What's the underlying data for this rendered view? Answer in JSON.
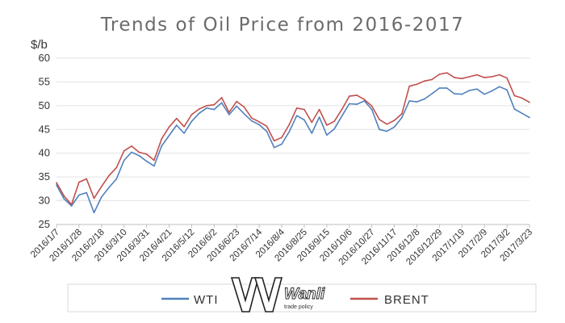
{
  "chart_data": {
    "type": "line",
    "title": "Trends of Oil Price from 2016-2017",
    "ylabel": "$/b",
    "ylim": [
      25,
      60
    ],
    "yticks": [
      25,
      30,
      35,
      40,
      45,
      50,
      55,
      60
    ],
    "x_tick_labels": [
      "2016/1/7",
      "2016/1/28",
      "2016/2/18",
      "2016/3/10",
      "2016/3/31",
      "2016/4/21",
      "2016/5/12",
      "2016/6/2",
      "2016/6/23",
      "2016/7/14",
      "2016/8/4",
      "2016/8/25",
      "2016/9/15",
      "2016/10/6",
      "2016/10/27",
      "2016/11/17",
      "2016/12/8",
      "2016/12/29",
      "2017/1/19",
      "2017/2/9",
      "2017/3/2",
      "2017/3/23"
    ],
    "grid": "horizontal",
    "legend_position": "bottom",
    "colors": {
      "WTI": "#4f81bd",
      "BRENT": "#c0504d"
    },
    "series": [
      {
        "name": "WTI",
        "x": [
          "2016/1/7",
          "2016/1/14",
          "2016/1/21",
          "2016/1/28",
          "2016/2/4",
          "2016/2/11",
          "2016/2/18",
          "2016/2/25",
          "2016/3/3",
          "2016/3/10",
          "2016/3/17",
          "2016/3/24",
          "2016/3/31",
          "2016/4/7",
          "2016/4/14",
          "2016/4/21",
          "2016/4/28",
          "2016/5/5",
          "2016/5/12",
          "2016/5/19",
          "2016/5/26",
          "2016/6/2",
          "2016/6/9",
          "2016/6/16",
          "2016/6/23",
          "2016/6/30",
          "2016/7/7",
          "2016/7/14",
          "2016/7/21",
          "2016/7/28",
          "2016/8/4",
          "2016/8/11",
          "2016/8/18",
          "2016/8/25",
          "2016/9/1",
          "2016/9/8",
          "2016/9/15",
          "2016/9/22",
          "2016/9/29",
          "2016/10/6",
          "2016/10/13",
          "2016/10/20",
          "2016/10/27",
          "2016/11/3",
          "2016/11/10",
          "2016/11/17",
          "2016/11/24",
          "2016/12/1",
          "2016/12/8",
          "2016/12/15",
          "2016/12/22",
          "2016/12/29",
          "2017/1/5",
          "2017/1/12",
          "2017/1/19",
          "2017/1/26",
          "2017/2/2",
          "2017/2/9",
          "2017/2/16",
          "2017/2/23",
          "2017/3/2",
          "2017/3/9",
          "2017/3/16",
          "2017/3/23"
        ],
        "values": [
          33.3,
          30.4,
          28.9,
          31.2,
          31.7,
          27.5,
          30.8,
          32.8,
          34.6,
          38.5,
          40.2,
          39.5,
          38.3,
          37.3,
          41.5,
          43.7,
          45.9,
          44.2,
          46.7,
          48.4,
          49.5,
          49.2,
          50.6,
          48.1,
          49.9,
          48.3,
          46.8,
          46.0,
          44.6,
          41.2,
          41.9,
          44.5,
          47.9,
          47.0,
          44.2,
          47.6,
          43.8,
          45.1,
          47.8,
          50.4,
          50.3,
          51.0,
          49.2,
          45.0,
          44.6,
          45.5,
          47.5,
          51.0,
          50.8,
          51.4,
          52.5,
          53.7,
          53.7,
          52.5,
          52.4,
          53.2,
          53.5,
          52.4,
          53.1,
          54.0,
          53.3,
          49.3,
          48.4,
          47.5
        ]
      },
      {
        "name": "BRENT",
        "x": [
          "2016/1/7",
          "2016/1/14",
          "2016/1/21",
          "2016/1/28",
          "2016/2/4",
          "2016/2/11",
          "2016/2/18",
          "2016/2/25",
          "2016/3/3",
          "2016/3/10",
          "2016/3/17",
          "2016/3/24",
          "2016/3/31",
          "2016/4/7",
          "2016/4/14",
          "2016/4/21",
          "2016/4/28",
          "2016/5/5",
          "2016/5/12",
          "2016/5/19",
          "2016/5/26",
          "2016/6/2",
          "2016/6/9",
          "2016/6/16",
          "2016/6/23",
          "2016/6/30",
          "2016/7/7",
          "2016/7/14",
          "2016/7/21",
          "2016/7/28",
          "2016/8/4",
          "2016/8/11",
          "2016/8/18",
          "2016/8/25",
          "2016/9/1",
          "2016/9/8",
          "2016/9/15",
          "2016/9/22",
          "2016/9/29",
          "2016/10/6",
          "2016/10/13",
          "2016/10/20",
          "2016/10/27",
          "2016/11/3",
          "2016/11/10",
          "2016/11/17",
          "2016/11/24",
          "2016/12/1",
          "2016/12/8",
          "2016/12/15",
          "2016/12/22",
          "2016/12/29",
          "2017/1/5",
          "2017/1/12",
          "2017/1/19",
          "2017/1/26",
          "2017/2/2",
          "2017/2/9",
          "2017/2/16",
          "2017/2/23",
          "2017/3/2",
          "2017/3/9",
          "2017/3/16",
          "2017/3/23"
        ],
        "values": [
          33.8,
          31.0,
          29.2,
          33.9,
          34.6,
          30.5,
          33.0,
          35.3,
          37.0,
          40.5,
          41.5,
          40.2,
          39.8,
          38.5,
          43.0,
          45.5,
          47.3,
          45.6,
          48.1,
          49.3,
          50.0,
          50.2,
          51.7,
          48.6,
          50.9,
          49.7,
          47.4,
          46.6,
          45.7,
          42.6,
          43.3,
          46.0,
          49.5,
          49.2,
          46.5,
          49.2,
          45.9,
          46.7,
          49.2,
          52.0,
          52.2,
          51.3,
          49.9,
          47.1,
          46.1,
          46.9,
          48.3,
          54.1,
          54.5,
          55.2,
          55.5,
          56.6,
          56.9,
          55.9,
          55.7,
          56.1,
          56.5,
          55.9,
          56.1,
          56.5,
          55.8,
          52.1,
          51.6,
          50.7
        ]
      }
    ]
  },
  "watermark": {
    "word": "Wanli",
    "subword": "trade policy"
  }
}
